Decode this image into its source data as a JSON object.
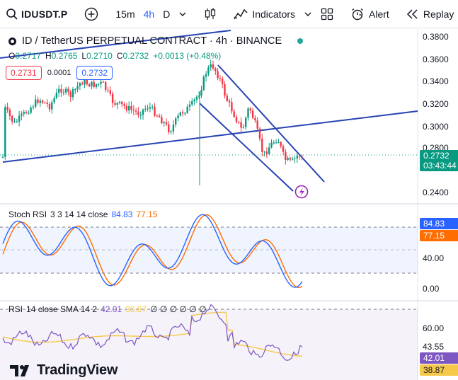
{
  "toolbar": {
    "symbol": "IDUSDT.P",
    "intervals": [
      "15m",
      "4h",
      "D"
    ],
    "active_interval": "4h",
    "indicators_label": "Indicators",
    "alert_label": "Alert",
    "replay_label": "Replay"
  },
  "legend": {
    "title": "ID / TetherUS PERPETUAL CONTRACT · 4h · BINANCE",
    "ohlc": [
      {
        "k": "O",
        "v": "0.2717"
      },
      {
        "k": "H",
        "v": "0.2765"
      },
      {
        "k": "L",
        "v": "0.2710"
      },
      {
        "k": "C",
        "v": "0.2732"
      }
    ],
    "change": "+0.0013 (+0.48%)",
    "sell_price": "0.2731",
    "spread": "0.0001",
    "buy_price": "0.2732"
  },
  "price_scale": {
    "labels": [
      "0.3800",
      "0.3600",
      "0.3400",
      "0.3200",
      "0.3000",
      "0.2800",
      "0.2400"
    ],
    "last_price": "0.2732",
    "countdown": "03:43:44"
  },
  "stoch_rsi": {
    "title": "Stoch RSI",
    "params": "3 3 14 14 close",
    "k_value": "84.83",
    "d_value": "77.15",
    "scale_labels": [
      "40.00",
      "0.00"
    ]
  },
  "rsi": {
    "title": "RSI",
    "params": "14 close SMA 14 2",
    "value": "42.01",
    "sma_value": "38.87",
    "extra": "∅ ∅ ∅ ∅ ∅ ∅",
    "scale_labels": [
      "60.00",
      "43.55"
    ]
  },
  "branding": {
    "logo_text": "TradingView"
  },
  "colors": {
    "up": "#089981",
    "down": "#f23645",
    "trendline": "#2843b6",
    "stoch_k": "#2962ff",
    "stoch_d": "#ff6d00",
    "rsi_line": "#7e57c2",
    "rsi_sma": "#f7c94a"
  }
}
